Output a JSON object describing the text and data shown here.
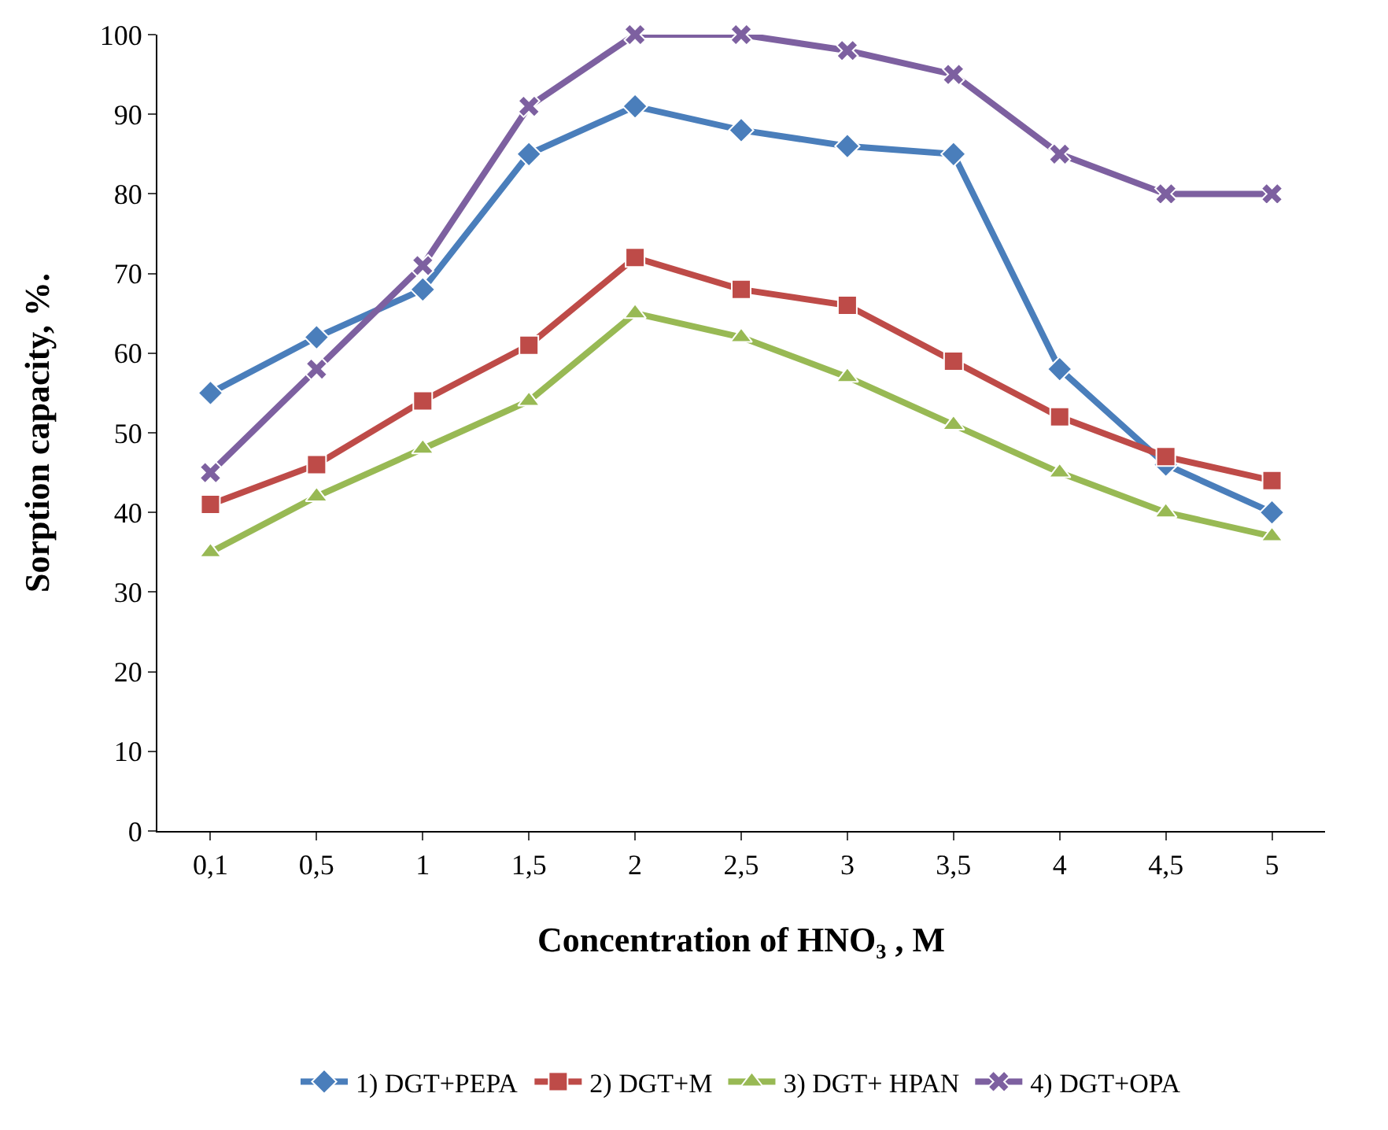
{
  "chart_data": {
    "type": "line",
    "xlabel": "Concentration of HNO₃ , M",
    "ylabel": "Sorption capacity, %.",
    "categories": [
      "0,1",
      "0,5",
      "1",
      "1,5",
      "2",
      "2,5",
      "3",
      "3,5",
      "4",
      "4,5",
      "5"
    ],
    "ylim": [
      0,
      100
    ],
    "yticks": [
      0,
      10,
      20,
      30,
      40,
      50,
      60,
      70,
      80,
      90,
      100
    ],
    "legend": "bottom",
    "series": [
      {
        "name": "1) DGT+PEPA",
        "color": "#4a7ebb",
        "marker": "diamond",
        "values": [
          55,
          62,
          68,
          85,
          91,
          88,
          86,
          85,
          58,
          46,
          40
        ]
      },
      {
        "name": "2) DGT+M",
        "color": "#be4b48",
        "marker": "square",
        "values": [
          41,
          46,
          54,
          61,
          72,
          68,
          66,
          59,
          52,
          47,
          44
        ]
      },
      {
        "name": "3) DGT+ HPAN",
        "color": "#98b954",
        "marker": "triangle",
        "values": [
          35,
          42,
          48,
          54,
          65,
          62,
          57,
          51,
          45,
          40,
          37
        ]
      },
      {
        "name": "4) DGT+OPA",
        "color": "#7d60a0",
        "marker": "cross",
        "values": [
          45,
          58,
          71,
          91,
          100,
          100,
          98,
          95,
          85,
          80,
          80
        ]
      }
    ]
  }
}
